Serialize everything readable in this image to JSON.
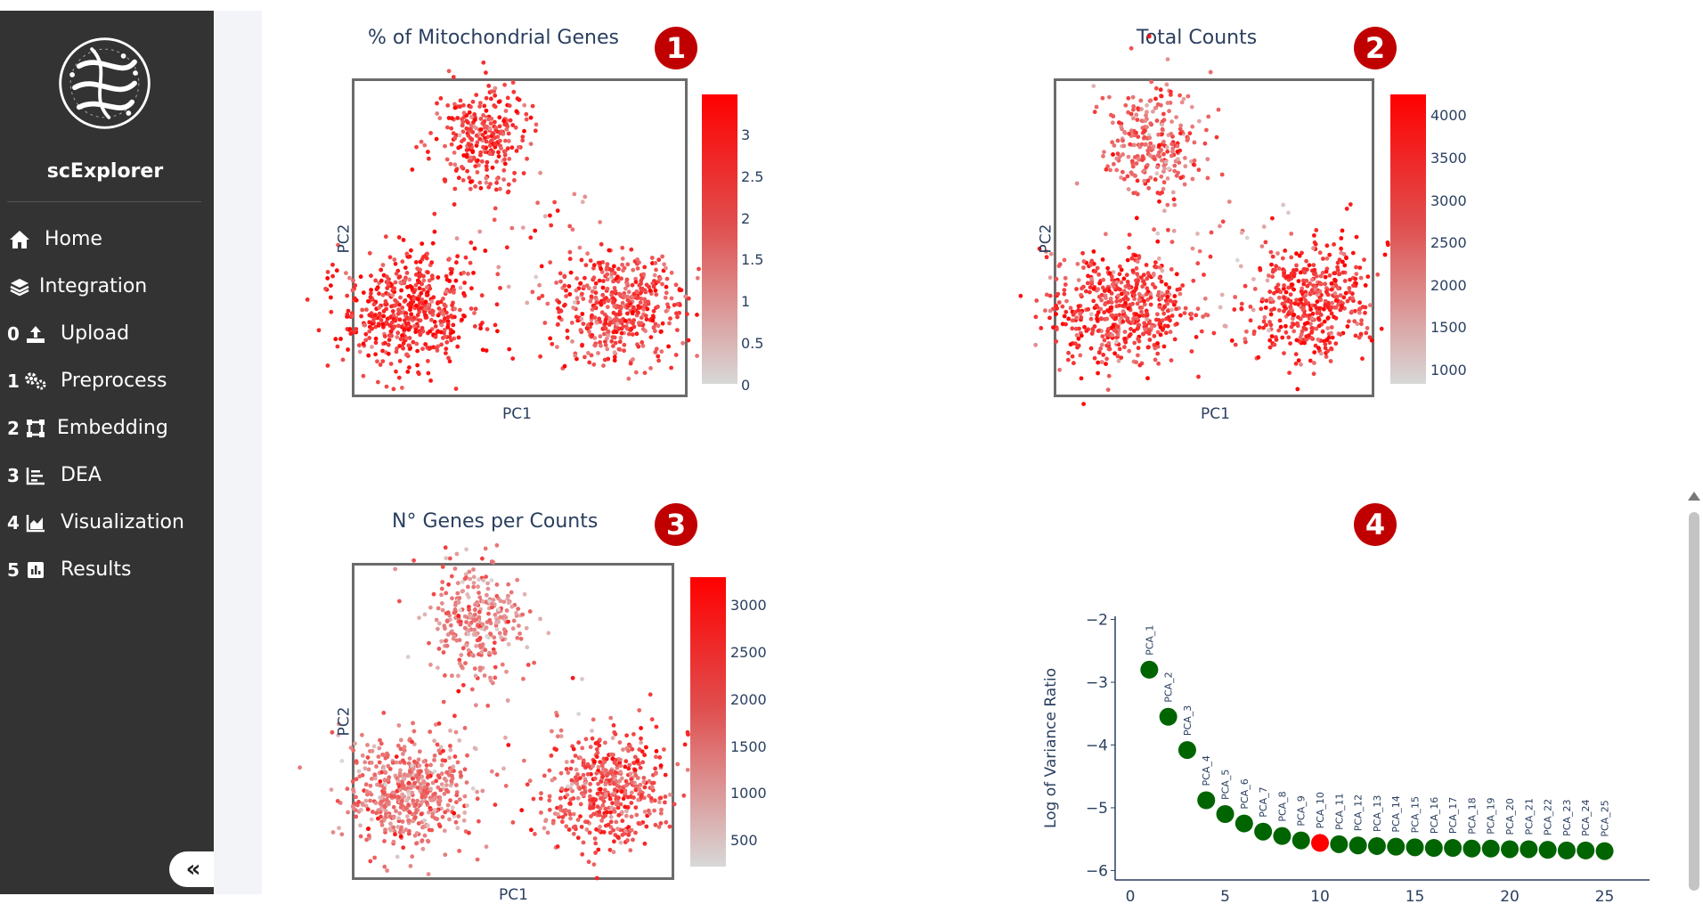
{
  "app": {
    "name": "scExplorer"
  },
  "sidebar": {
    "items": [
      {
        "num": "",
        "label": "Home",
        "icon": "home-icon"
      },
      {
        "num": "",
        "label": "Integration",
        "icon": "layers-icon"
      },
      {
        "num": "0",
        "label": "Upload",
        "icon": "upload-icon"
      },
      {
        "num": "1",
        "label": "Preprocess",
        "icon": "gears-icon"
      },
      {
        "num": "2",
        "label": "Embedding",
        "icon": "vector-square-icon"
      },
      {
        "num": "3",
        "label": "DEA",
        "icon": "chart-bar-icon"
      },
      {
        "num": "4",
        "label": "Visualization",
        "icon": "chart-area-icon"
      },
      {
        "num": "5",
        "label": "Results",
        "icon": "square-poll-icon"
      }
    ],
    "collapse_label": "«"
  },
  "panels": {
    "p1": {
      "title": "% of Mitochondrial Genes",
      "badge": "1",
      "xlabel": "PC1",
      "ylabel": "PC2"
    },
    "p2": {
      "title": "Total Counts",
      "badge": "2",
      "xlabel": "PC1",
      "ylabel": "PC2"
    },
    "p3": {
      "title": "N° Genes per Counts",
      "badge": "3",
      "xlabel": "PC1",
      "ylabel": "PC2"
    },
    "p4": {
      "badge": "4",
      "ylabel": "Log of Variance Ratio"
    }
  },
  "colors": {
    "accent": "#c00000",
    "sidebar_bg": "#333333",
    "point_high": "#ff0000",
    "point_low": "#d8d8d8",
    "pca_point": "#006400",
    "pca_highlight": "#ff0000"
  },
  "chart_data": [
    {
      "type": "scatter",
      "title": "% of Mitochondrial Genes",
      "xlabel": "PC1",
      "ylabel": "PC2",
      "colorscale": [
        "#d8d8d8",
        "#ff0000"
      ],
      "colorbar_ticks": [
        "3",
        "2.5",
        "2",
        "1.5",
        "1",
        "0.5",
        "0"
      ],
      "colorbar_range": [
        0,
        3.5
      ],
      "clusters": [
        {
          "cx": 0.38,
          "cy": 0.82,
          "sx": 0.075,
          "sy": 0.09,
          "n": 300,
          "level": 0.72
        },
        {
          "cx": 0.16,
          "cy": 0.27,
          "sx": 0.1,
          "sy": 0.09,
          "n": 520,
          "level": 0.78
        },
        {
          "cx": 0.8,
          "cy": 0.28,
          "sx": 0.1,
          "sy": 0.09,
          "n": 480,
          "level": 0.68
        }
      ]
    },
    {
      "type": "scatter",
      "title": "Total Counts",
      "xlabel": "PC1",
      "ylabel": "PC2",
      "colorscale": [
        "#d8d8d8",
        "#ff0000"
      ],
      "colorbar_ticks": [
        "4000",
        "3500",
        "3000",
        "2500",
        "2000",
        "1500",
        "1000"
      ],
      "colorbar_range": [
        800,
        4300
      ],
      "clusters": [
        {
          "cx": 0.31,
          "cy": 0.8,
          "sx": 0.075,
          "sy": 0.09,
          "n": 280,
          "level": 0.55
        },
        {
          "cx": 0.2,
          "cy": 0.27,
          "sx": 0.11,
          "sy": 0.09,
          "n": 520,
          "level": 0.72
        },
        {
          "cx": 0.8,
          "cy": 0.3,
          "sx": 0.1,
          "sy": 0.09,
          "n": 460,
          "level": 0.75
        }
      ]
    },
    {
      "type": "scatter",
      "title": "N° Genes per Counts",
      "xlabel": "PC1",
      "ylabel": "PC2",
      "colorscale": [
        "#d8d8d8",
        "#ff0000"
      ],
      "colorbar_ticks": [
        "3000",
        "2500",
        "2000",
        "1500",
        "1000",
        "500"
      ],
      "colorbar_range": [
        300,
        3300
      ],
      "clusters": [
        {
          "cx": 0.38,
          "cy": 0.82,
          "sx": 0.075,
          "sy": 0.09,
          "n": 300,
          "level": 0.4
        },
        {
          "cx": 0.16,
          "cy": 0.27,
          "sx": 0.1,
          "sy": 0.09,
          "n": 520,
          "level": 0.45
        },
        {
          "cx": 0.8,
          "cy": 0.28,
          "sx": 0.1,
          "sy": 0.09,
          "n": 480,
          "level": 0.62
        }
      ]
    },
    {
      "type": "scatter",
      "ylabel": "Log of Variance Ratio",
      "xticks": [
        0,
        5,
        10,
        15,
        20,
        25
      ],
      "yticks": [
        -2,
        -3,
        -4,
        -5,
        -6
      ],
      "xlim": [
        -0.8,
        26.9
      ],
      "ylim": [
        -6.15,
        -1.95
      ],
      "highlight_index": 10,
      "points": [
        {
          "x": 1,
          "y": -2.8,
          "label": "PCA_1"
        },
        {
          "x": 2,
          "y": -3.55,
          "label": "PCA_2"
        },
        {
          "x": 3,
          "y": -4.08,
          "label": "PCA_3"
        },
        {
          "x": 4,
          "y": -4.88,
          "label": "PCA_4"
        },
        {
          "x": 5,
          "y": -5.1,
          "label": "PCA_5"
        },
        {
          "x": 6,
          "y": -5.25,
          "label": "PCA_6"
        },
        {
          "x": 7,
          "y": -5.38,
          "label": "PCA_7"
        },
        {
          "x": 8,
          "y": -5.45,
          "label": "PCA_8"
        },
        {
          "x": 9,
          "y": -5.52,
          "label": "PCA_9"
        },
        {
          "x": 10,
          "y": -5.56,
          "label": "PCA_10"
        },
        {
          "x": 11,
          "y": -5.58,
          "label": "PCA_11"
        },
        {
          "x": 12,
          "y": -5.6,
          "label": "PCA_12"
        },
        {
          "x": 13,
          "y": -5.61,
          "label": "PCA_13"
        },
        {
          "x": 14,
          "y": -5.62,
          "label": "PCA_14"
        },
        {
          "x": 15,
          "y": -5.63,
          "label": "PCA_15"
        },
        {
          "x": 16,
          "y": -5.64,
          "label": "PCA_16"
        },
        {
          "x": 17,
          "y": -5.64,
          "label": "PCA_17"
        },
        {
          "x": 18,
          "y": -5.65,
          "label": "PCA_18"
        },
        {
          "x": 19,
          "y": -5.65,
          "label": "PCA_19"
        },
        {
          "x": 20,
          "y": -5.66,
          "label": "PCA_20"
        },
        {
          "x": 21,
          "y": -5.66,
          "label": "PCA_21"
        },
        {
          "x": 22,
          "y": -5.67,
          "label": "PCA_22"
        },
        {
          "x": 23,
          "y": -5.68,
          "label": "PCA_23"
        },
        {
          "x": 24,
          "y": -5.68,
          "label": "PCA_24"
        },
        {
          "x": 25,
          "y": -5.69,
          "label": "PCA_25"
        }
      ]
    }
  ]
}
